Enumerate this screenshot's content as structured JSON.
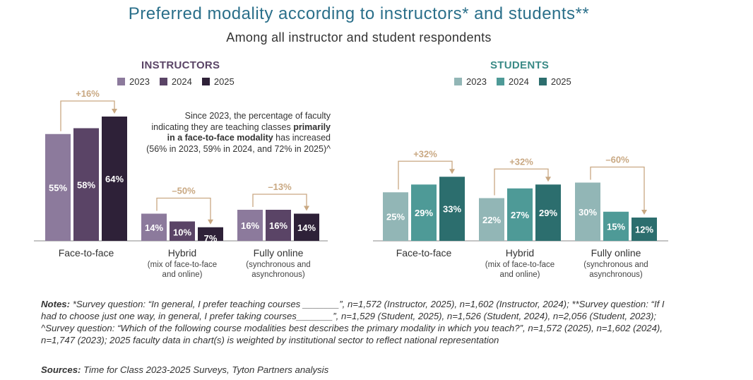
{
  "title": "Preferred modality according to instructors* and students**",
  "subtitle": "Among all instructor and student respondents",
  "chart_data": [
    {
      "type": "bar",
      "title": "INSTRUCTORS",
      "categories": [
        "Face-to-face",
        "Hybrid",
        "Fully online"
      ],
      "category_sublabels": [
        "",
        "(mix of face-to-face and online)",
        "(synchronous and asynchronous)"
      ],
      "series": [
        {
          "name": "2023",
          "values": [
            55,
            14,
            16
          ],
          "color": "#8c7a9c"
        },
        {
          "name": "2024",
          "values": [
            58,
            10,
            16
          ],
          "color": "#5a4466"
        },
        {
          "name": "2025",
          "values": [
            64,
            7,
            14
          ],
          "color": "#2e2138"
        }
      ],
      "value_labels": [
        [
          "55%",
          "58%",
          "64%"
        ],
        [
          "14%",
          "10%",
          "7%"
        ],
        [
          "16%",
          "16%",
          "14%"
        ]
      ],
      "changes": [
        "+16%",
        "–50%",
        "–13%"
      ],
      "legend_position": "top",
      "grid": false
    },
    {
      "type": "bar",
      "title": "STUDENTS",
      "categories": [
        "Face-to-face",
        "Hybrid",
        "Fully online"
      ],
      "category_sublabels": [
        "",
        "(mix of face-to-face and online)",
        "(synchronous and asynchronous)"
      ],
      "series": [
        {
          "name": "2023",
          "values": [
            25,
            22,
            30
          ],
          "color": "#92b6b6"
        },
        {
          "name": "2024",
          "values": [
            29,
            27,
            15
          ],
          "color": "#4e9a97"
        },
        {
          "name": "2025",
          "values": [
            33,
            29,
            12
          ],
          "color": "#2c6e6e"
        }
      ],
      "value_labels": [
        [
          "25%",
          "29%",
          "33%"
        ],
        [
          "22%",
          "27%",
          "29%"
        ],
        [
          "30%",
          "15%",
          "12%"
        ]
      ],
      "changes": [
        "+32%",
        "+32%",
        "–60%"
      ],
      "legend_position": "top",
      "grid": false
    }
  ],
  "callout": {
    "line1": "Since 2023, the percentage of faculty indicating they are teaching classes",
    "bold": "primarily in a face-to-face modality",
    "line2": "has increased (56% in 2023, 59% in 2024, and 72% in 2025)^"
  },
  "notes": {
    "label": "Notes:",
    "text": "*Survey question: “In general, I prefer teaching courses _______”, n=1,572 (Instructor, 2025), n=1,602 (Instructor, 2024); **Survey question: “If I had to choose just one way, in general, I prefer taking courses_______”, n=1,529 (Student, 2025), n=1,526 (Student, 2024), n=2,056 (Student, 2023); ^Survey question: “Which of the following course modalities best describes the primary modality in which you teach?”, n=1,572 (2025), n=1,602 (2024), n=1,747 (2023); 2025 faculty data in chart(s) is weighted by institutional sector to reflect national representation"
  },
  "sources": {
    "label": "Sources:",
    "text": "Time for Class 2023-2025 Surveys, Tyton Partners analysis"
  },
  "colors": {
    "title": "#2a6f8a",
    "instructors_title": "#5a4466",
    "students_title": "#3a8a86",
    "change_annotation": "#c9a882",
    "baseline": "#888888"
  }
}
